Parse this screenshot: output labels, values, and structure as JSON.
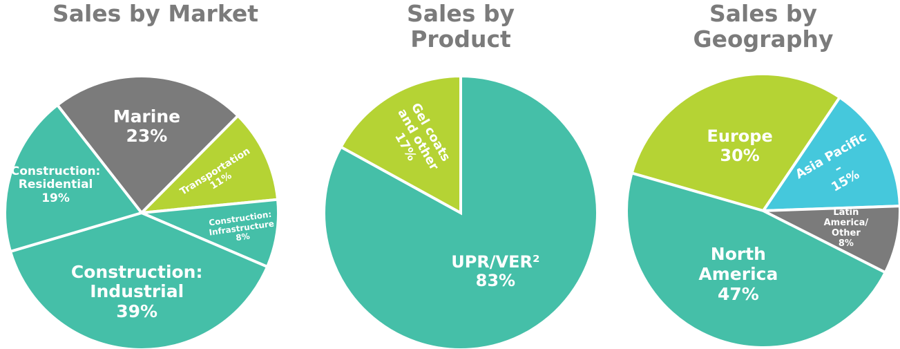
{
  "chart_data": [
    {
      "type": "pie",
      "title": "Sales by Market",
      "categories": [
        "Marine",
        "Transportation",
        "Construction: Infrastructure",
        "Construction: Industrial",
        "Construction: Residential"
      ],
      "values": [
        23,
        11,
        8,
        39,
        19
      ],
      "value_labels": [
        "23%",
        "11%",
        "8%",
        "39%",
        "19%"
      ],
      "colors": [
        "#7b7b7b",
        "#b5d334",
        "#45bfa8",
        "#45bfa8",
        "#45bfa8"
      ]
    },
    {
      "type": "pie",
      "title": "Sales by Product",
      "categories": [
        "UPR/VER²",
        "Gel coats and other"
      ],
      "values": [
        83,
        17
      ],
      "value_labels": [
        "83%",
        "17%"
      ],
      "colors": [
        "#45bfa8",
        "#b5d334"
      ]
    },
    {
      "type": "pie",
      "title": "Sales by Geography",
      "categories": [
        "Europe",
        "Asia Pacific –",
        "Latin America/ Other",
        "North America"
      ],
      "values": [
        30,
        15,
        8,
        47
      ],
      "value_labels": [
        "30%",
        "15%",
        "8%",
        "47%"
      ],
      "colors": [
        "#b5d334",
        "#45c8dc",
        "#7b7b7b",
        "#45bfa8"
      ]
    }
  ]
}
